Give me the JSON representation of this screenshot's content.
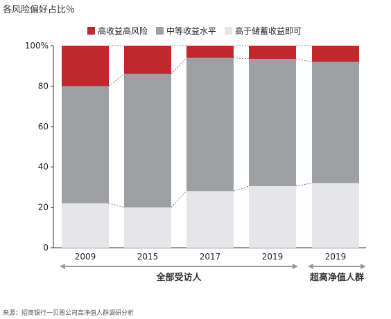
{
  "title": "各风险偏好占比％",
  "source": "来源：招商银行一贝恩公司高净值人群调研分析",
  "colors": {
    "high": "#C1272D",
    "mid": "#9D9FA2",
    "low": "#E6E6E8"
  },
  "chart_data": {
    "type": "bar",
    "stacked": true,
    "categories": [
      "2009",
      "2015",
      "2017",
      "2019",
      "2019"
    ],
    "groups": [
      {
        "label": "全部受访人",
        "categories": [
          0,
          1,
          2,
          3
        ]
      },
      {
        "label": "超高净值人群",
        "categories": [
          4
        ]
      }
    ],
    "series": [
      {
        "name": "高收益高风险",
        "values": [
          20,
          14,
          6,
          6.5,
          8
        ]
      },
      {
        "name": "中等收益水平",
        "values": [
          58,
          66,
          66,
          63,
          60
        ]
      },
      {
        "name": "高于储蓄收益即可",
        "values": [
          22,
          20,
          28,
          30.5,
          32
        ]
      }
    ],
    "ylim": [
      0,
      100
    ],
    "yticks": [
      "0",
      "20",
      "40",
      "60",
      "80",
      "100%"
    ],
    "legend_position": "top"
  }
}
